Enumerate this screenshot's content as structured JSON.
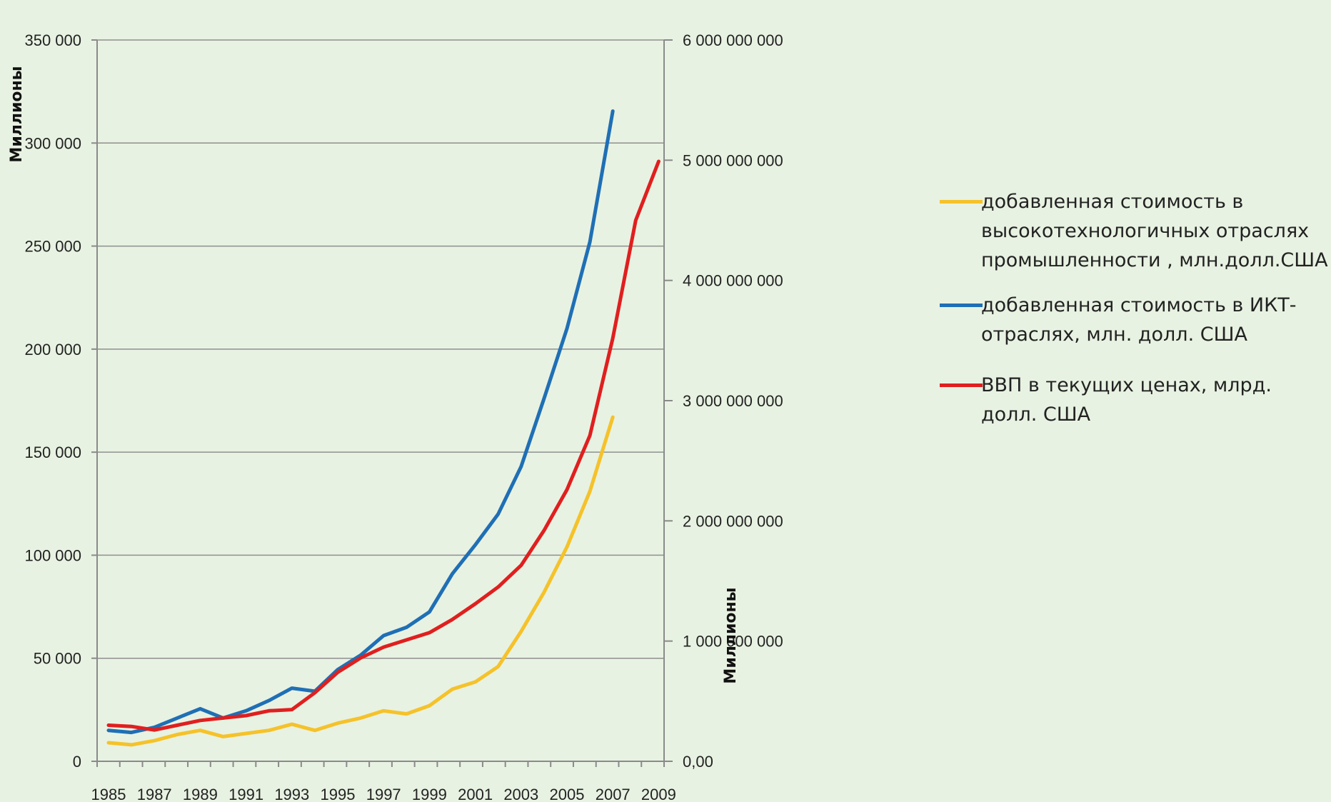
{
  "chart_data": {
    "type": "line",
    "title": "",
    "x": [
      1985,
      1986,
      1987,
      1988,
      1989,
      1990,
      1991,
      1992,
      1993,
      1994,
      1995,
      1996,
      1997,
      1998,
      1999,
      2000,
      2001,
      2002,
      2003,
      2004,
      2005,
      2006,
      2007,
      2008,
      2009
    ],
    "x_tick_labels": [
      "1985",
      "1987",
      "1989",
      "1991",
      "1993",
      "1995",
      "1997",
      "1999",
      "2001",
      "2003",
      "2005",
      "2007",
      "2009"
    ],
    "y_left": {
      "label": "Миллионы",
      "lim": [
        0,
        350000
      ],
      "tick_labels": [
        "0",
        "50 000",
        "100 000",
        "150 000",
        "200 000",
        "250 000",
        "300 000",
        "350 000"
      ]
    },
    "y_right": {
      "label": "Миллионы",
      "lim": [
        0,
        6000000000
      ],
      "tick_labels": [
        "0,00",
        "1 000 000 000",
        "2 000 000 000",
        "3 000 000 000",
        "4 000 000 000",
        "5 000 000 000",
        "6 000 000 000"
      ]
    },
    "grid": true,
    "legend_position": "right",
    "series": [
      {
        "name": "добавленная стоимость в высокотехнологичных отраслях промышленности , млн.долл.США",
        "axis": "left",
        "color": "#f5c22a",
        "values": [
          9000,
          8000,
          10000,
          13000,
          15000,
          12000,
          13500,
          15000,
          18000,
          15000,
          18500,
          21000,
          24500,
          23000,
          27000,
          35000,
          38500,
          46000,
          63000,
          82000,
          104000,
          131000,
          167000,
          null,
          null
        ]
      },
      {
        "name": "добавленная стоимость в ИКТ-отраслях, млн. долл. США",
        "axis": "left",
        "color": "#1f6fb5",
        "values": [
          15000,
          14000,
          16500,
          21000,
          25500,
          21000,
          24500,
          29500,
          35500,
          34000,
          44500,
          51500,
          61000,
          65000,
          72500,
          91000,
          105000,
          120000,
          143000,
          176000,
          210000,
          252000,
          315500,
          null,
          null
        ]
      },
      {
        "name": "ВВП в текущих ценах, млрд. долл. США",
        "axis": "right",
        "color": "#e01f1f",
        "values": [
          300000000,
          290000000,
          260000000,
          300000000,
          340000000,
          360000000,
          380000000,
          420000000,
          430000000,
          570000000,
          740000000,
          860000000,
          950000000,
          1010000000,
          1070000000,
          1180000000,
          1310000000,
          1450000000,
          1630000000,
          1920000000,
          2260000000,
          2710000000,
          3520000000,
          4500000000,
          4990000000
        ]
      }
    ]
  }
}
